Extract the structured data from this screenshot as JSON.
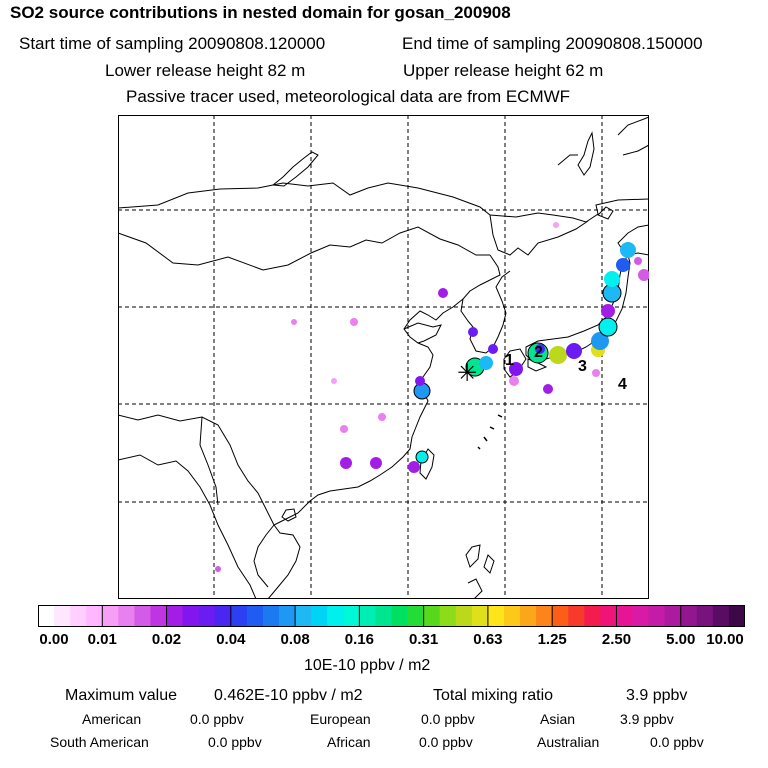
{
  "header": {
    "title": "SO2 source contributions in nested domain for gosan_200908",
    "start_time": "Start time of sampling 20090808.120000",
    "end_time": "End time of sampling 20090808.150000",
    "lower_release": "Lower release height   82 m",
    "upper_release": "Upper release height   62 m",
    "tracer_note": "Passive tracer used, meteorological data are from ECMWF"
  },
  "map": {
    "markers": [
      "1",
      "2",
      "3",
      "4"
    ],
    "receptor_symbol": "✳"
  },
  "colorbar": {
    "ticks": [
      "0.00",
      "0.01",
      "0.02",
      "0.04",
      "0.08",
      "0.16",
      "0.31",
      "0.63",
      "1.25",
      "2.50",
      "5.00",
      "10.00"
    ],
    "unit": "10E-10 ppbv / m2",
    "colors": [
      "#ffffff",
      "#ffe8ff",
      "#ffd0ff",
      "#ffb8ff",
      "#f79ef5",
      "#e880f0",
      "#d45ae8",
      "#bf35e3",
      "#a21ee6",
      "#8316ee",
      "#6a1cf2",
      "#4a26f2",
      "#2c40f2",
      "#1e5cf2",
      "#1c7af0",
      "#1e98f2",
      "#1eb8f5",
      "#00d4f5",
      "#00f0ee",
      "#00f7d8",
      "#00eeb4",
      "#00e690",
      "#00e060",
      "#23dc35",
      "#58d81c",
      "#8cdc1a",
      "#bcd81a",
      "#e0e01a",
      "#fce51a",
      "#fcc81a",
      "#fca61a",
      "#fc841a",
      "#fc5e1a",
      "#f83a2c",
      "#f41c4e",
      "#f01478",
      "#e81496",
      "#d81aa6",
      "#c41ca8",
      "#ac1aa0",
      "#92168f",
      "#78127c",
      "#5a0c64",
      "#3c0845"
    ]
  },
  "summary": {
    "max_label": "Maximum value",
    "max_value": "0.462E-10 ppbv / m2",
    "total_label": "Total mixing ratio",
    "total_value": "3.9 ppbv",
    "regions": [
      {
        "name": "American",
        "value": "0.0 ppbv"
      },
      {
        "name": "European",
        "value": "0.0 ppbv"
      },
      {
        "name": "Asian",
        "value": "3.9 ppbv"
      },
      {
        "name": "South American",
        "value": "0.0 ppbv"
      },
      {
        "name": "African",
        "value": "0.0 ppbv"
      },
      {
        "name": "Australian",
        "value": "0.0 ppbv"
      }
    ]
  }
}
